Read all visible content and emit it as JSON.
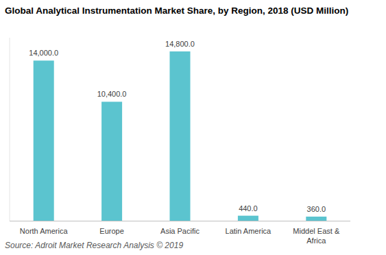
{
  "chart_data": {
    "type": "bar",
    "title": "Global Analytical Instrumentation Market Share, by Region, 2018 (USD Million)",
    "source": "Source: Adroit Market Research Analysis © 2019",
    "categories": [
      "North America",
      "Europe",
      "Asia Pacific",
      "Latin America",
      "Middel East & Africa"
    ],
    "values": [
      14000,
      10400,
      14800,
      440,
      360
    ],
    "value_labels": [
      "14,000.0",
      "10,400.0",
      "14,800.0",
      "440.0",
      "360.0"
    ],
    "color": "#5bc4cf",
    "ylim": [
      0,
      16000
    ],
    "grid": false,
    "data_labels": true,
    "tick_labels": "x"
  }
}
